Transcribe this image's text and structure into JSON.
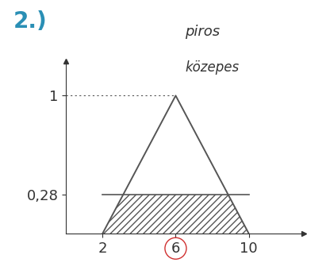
{
  "chart_data": {
    "type": "line",
    "title": "2.)",
    "annotations": [
      "piros",
      "közepes"
    ],
    "x": [
      2,
      6,
      10
    ],
    "values": [
      0,
      1,
      0
    ],
    "color": "#555555",
    "xlim": [
      0,
      13
    ],
    "ylim": [
      0,
      1.25
    ],
    "xticks": [
      2,
      6,
      10
    ],
    "yticks": [
      {
        "value": 0.28,
        "label": "0,28"
      },
      1
    ],
    "fill_below": 0.28,
    "marked_tick": 6
  }
}
